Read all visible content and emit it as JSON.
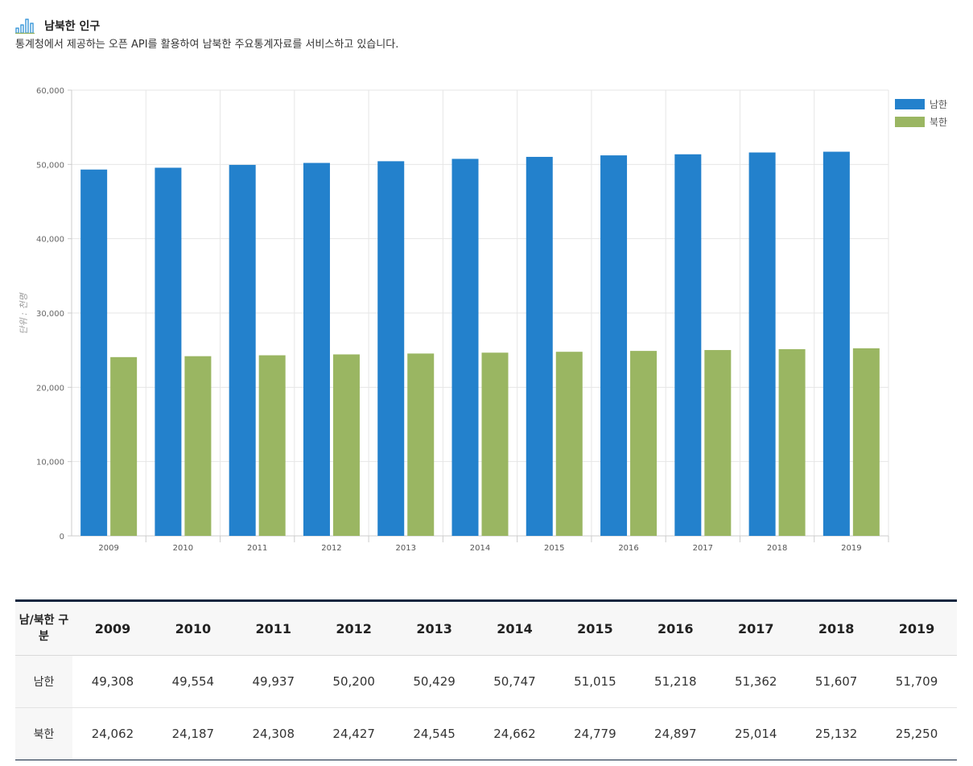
{
  "header": {
    "title": "남북한 인구",
    "subtitle": "통계청에서 제공하는 오픈 API를 활용하여 남북한 주요통계자료를 서비스하고 있습니다."
  },
  "colors": {
    "south": "#2381cc",
    "north": "#9ab662",
    "grid": "#e6e6e6",
    "axis": "#cccccc",
    "table_border": "#13263f"
  },
  "chart_data": {
    "type": "bar",
    "categories": [
      "2009",
      "2010",
      "2011",
      "2012",
      "2013",
      "2014",
      "2015",
      "2016",
      "2017",
      "2018",
      "2019"
    ],
    "series": [
      {
        "name": "남한",
        "color": "#2381cc",
        "values": [
          49308,
          49554,
          49937,
          50200,
          50429,
          50747,
          51015,
          51218,
          51362,
          51607,
          51709
        ]
      },
      {
        "name": "북한",
        "color": "#9ab662",
        "values": [
          24062,
          24187,
          24308,
          24427,
          24545,
          24662,
          24779,
          24897,
          25014,
          25132,
          25250
        ]
      }
    ],
    "ylabel": "단위 : 천명",
    "ylim": [
      0,
      60000
    ],
    "yticks": [
      0,
      10000,
      20000,
      30000,
      40000,
      50000,
      60000
    ],
    "ytick_labels": [
      "0",
      "10,000",
      "20,000",
      "30,000",
      "40,000",
      "50,000",
      "60,000"
    ],
    "grid": true,
    "legend_position": "top-right"
  },
  "table": {
    "corner_label": "남/북한 구분",
    "years": [
      "2009",
      "2010",
      "2011",
      "2012",
      "2013",
      "2014",
      "2015",
      "2016",
      "2017",
      "2018",
      "2019"
    ],
    "rows": [
      {
        "label": "남한",
        "values": [
          "49,308",
          "49,554",
          "49,937",
          "50,200",
          "50,429",
          "50,747",
          "51,015",
          "51,218",
          "51,362",
          "51,607",
          "51,709"
        ]
      },
      {
        "label": "북한",
        "values": [
          "24,062",
          "24,187",
          "24,308",
          "24,427",
          "24,545",
          "24,662",
          "24,779",
          "24,897",
          "25,014",
          "25,132",
          "25,250"
        ]
      }
    ]
  }
}
